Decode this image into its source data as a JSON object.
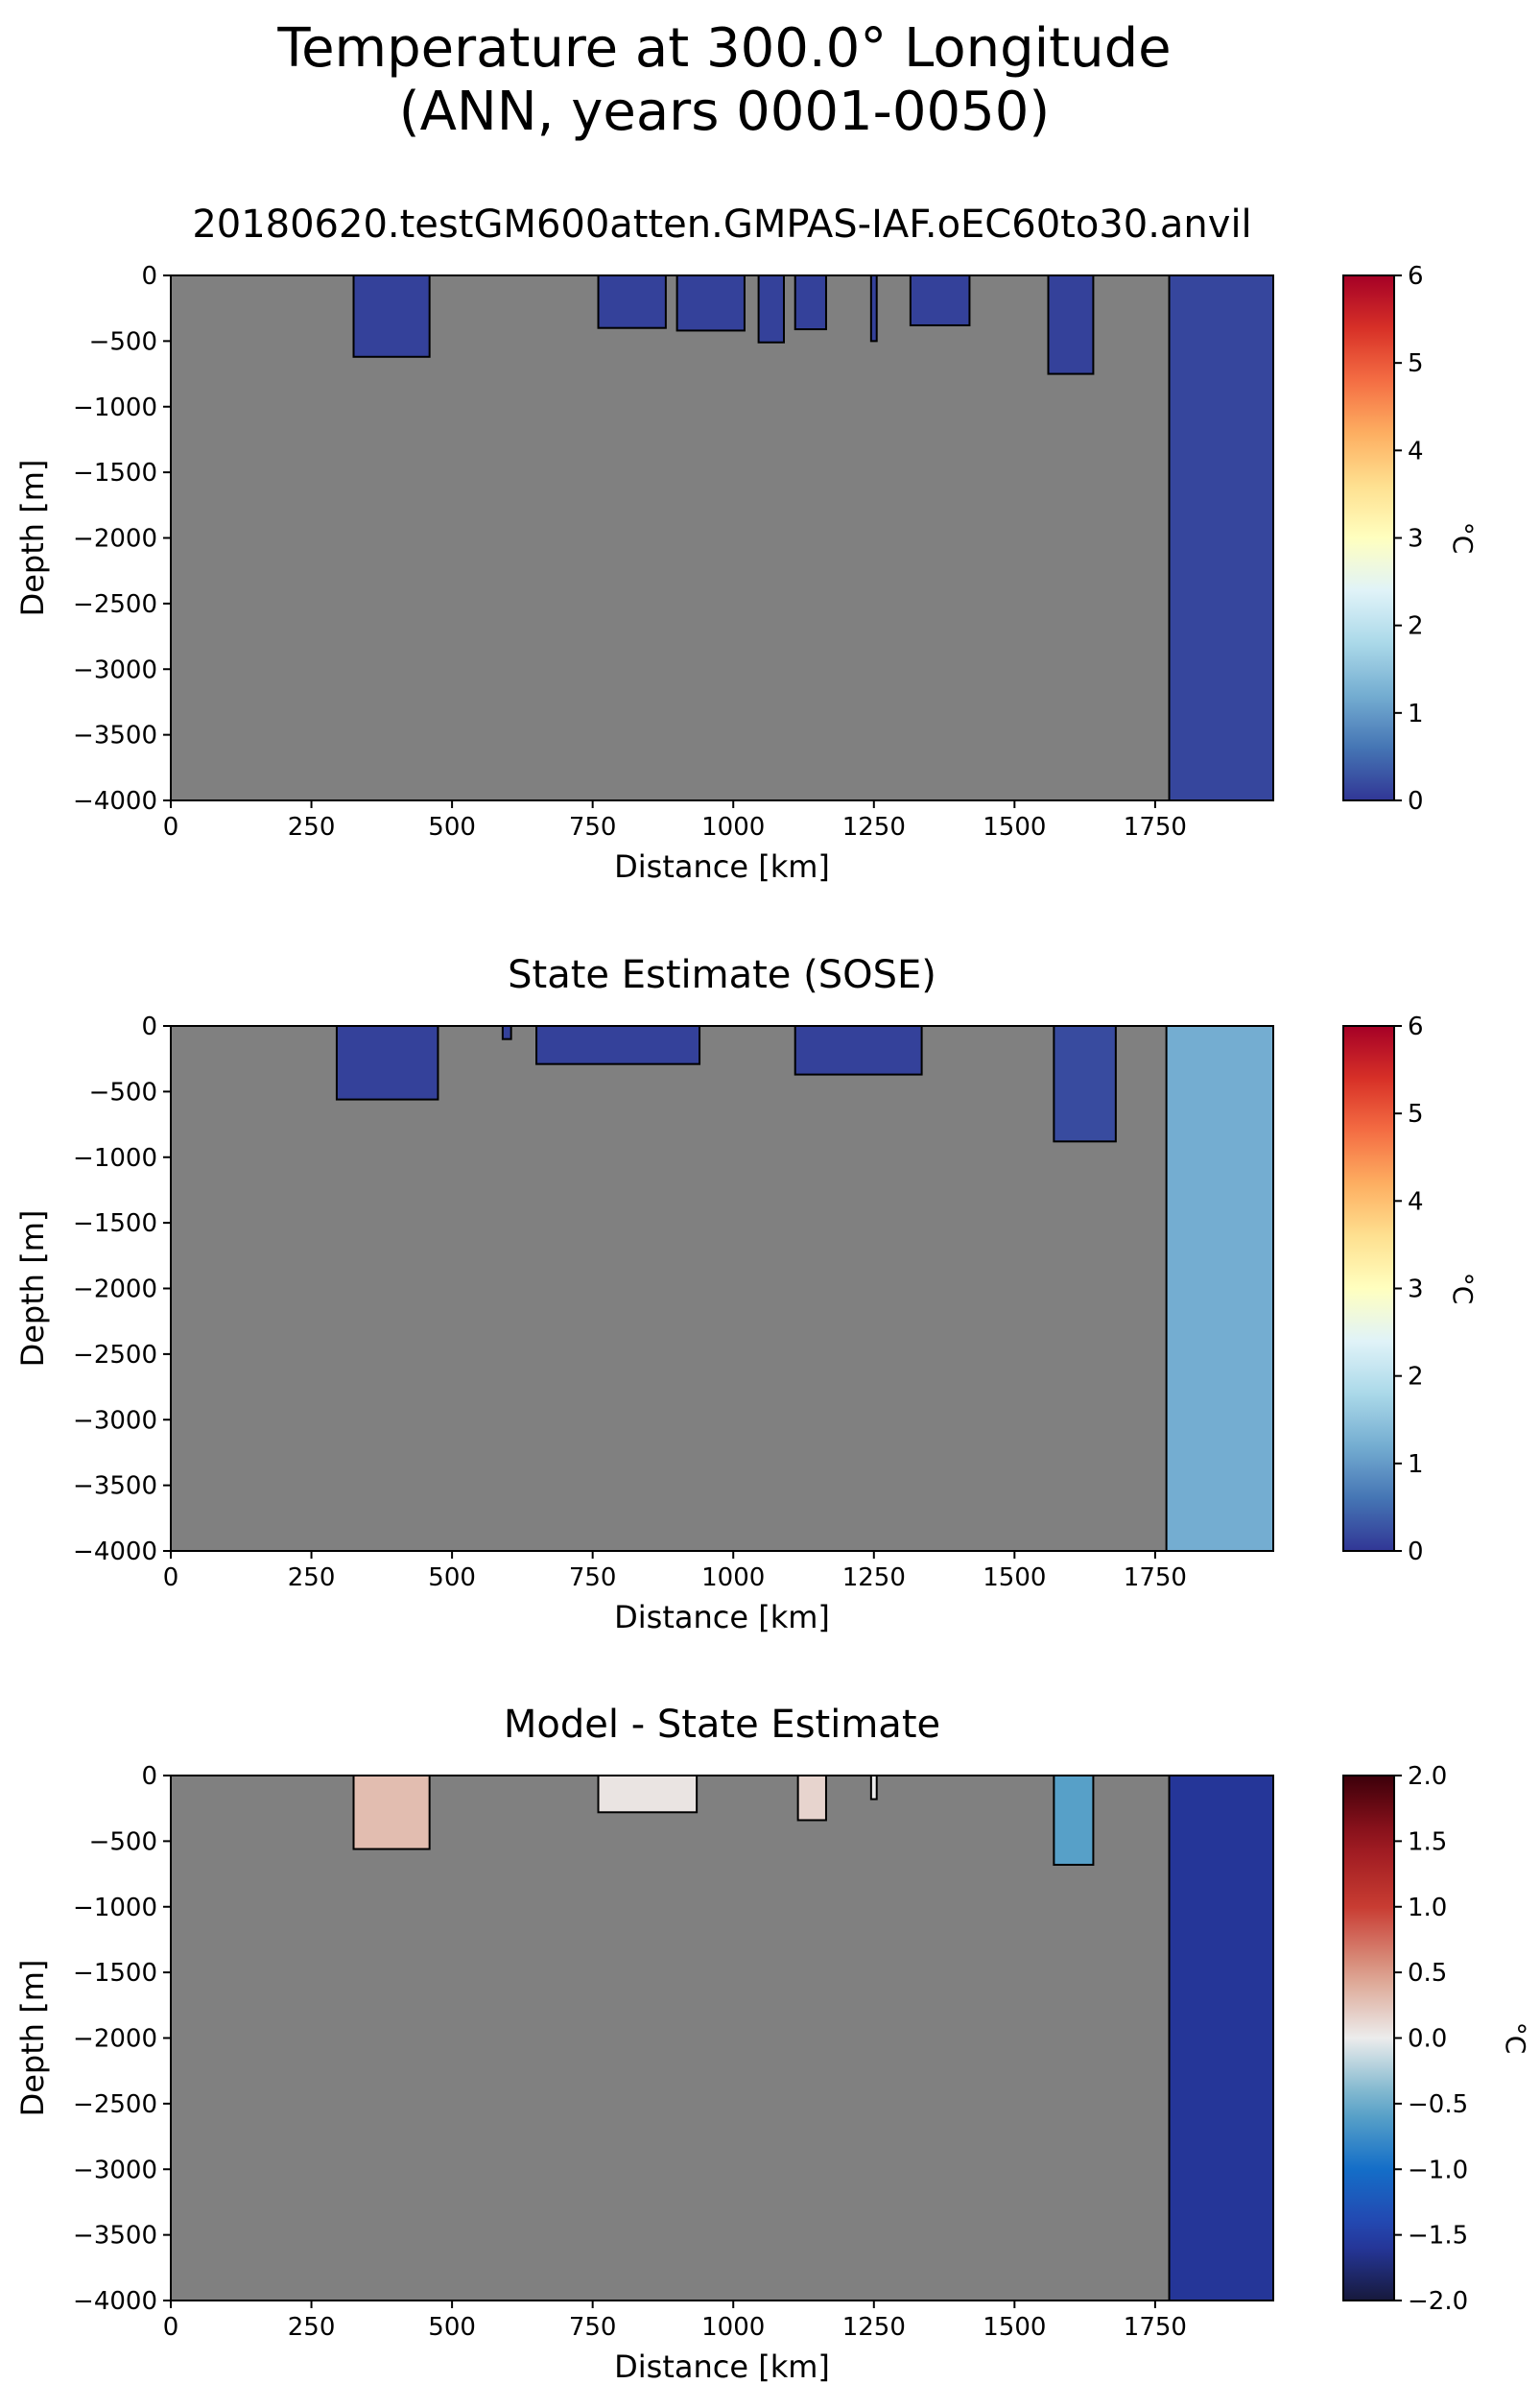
{
  "suptitle": [
    "Temperature at 300.0° Longitude",
    "(ANN, years 0001-0050)"
  ],
  "chart_data": [
    {
      "type": "heatmap",
      "title": "20180620.testGM600atten.GMPAS-IAF.oEC60to30.anvil",
      "xlabel": "Distance [km]",
      "ylabel": "Depth [m]",
      "xlim": [
        0,
        1960
      ],
      "ylim": [
        -4000,
        0
      ],
      "xticks": [
        0,
        250,
        500,
        750,
        1000,
        1250,
        1500,
        1750
      ],
      "yticks": [
        0,
        -500,
        -1000,
        -1500,
        -2000,
        -2500,
        -3000,
        -3500,
        -4000
      ],
      "colorbar": {
        "label": "°C",
        "range": [
          0,
          6
        ],
        "ticks": [
          0,
          1,
          2,
          3,
          4,
          5,
          6
        ],
        "colormap": "RdYlBu_r"
      },
      "land_color": "#808080",
      "ocean_columns": [
        {
          "x": [
            325,
            460
          ],
          "bottom": -620,
          "value": 0.1
        },
        {
          "x": [
            760,
            880
          ],
          "bottom": -400,
          "value": 0.1
        },
        {
          "x": [
            900,
            1020
          ],
          "bottom": -420,
          "value": 0.1
        },
        {
          "x": [
            1045,
            1090
          ],
          "bottom": -510,
          "value": 0.1
        },
        {
          "x": [
            1110,
            1165
          ],
          "bottom": -410,
          "value": 0.1
        },
        {
          "x": [
            1245,
            1255
          ],
          "bottom": -500,
          "value": 0.1
        },
        {
          "x": [
            1315,
            1420
          ],
          "bottom": -380,
          "value": 0.1
        },
        {
          "x": [
            1560,
            1640
          ],
          "bottom": -750,
          "value": 0.1
        },
        {
          "x": [
            1775,
            1960
          ],
          "bottom": -4000,
          "value": 0.15
        }
      ]
    },
    {
      "type": "heatmap",
      "title": "State Estimate (SOSE)",
      "xlabel": "Distance [km]",
      "ylabel": "Depth [m]",
      "xlim": [
        0,
        1960
      ],
      "ylim": [
        -4000,
        0
      ],
      "xticks": [
        0,
        250,
        500,
        750,
        1000,
        1250,
        1500,
        1750
      ],
      "yticks": [
        0,
        -500,
        -1000,
        -1500,
        -2000,
        -2500,
        -3000,
        -3500,
        -4000
      ],
      "colorbar": {
        "label": "°C",
        "range": [
          0,
          6
        ],
        "ticks": [
          0,
          1,
          2,
          3,
          4,
          5,
          6
        ],
        "colormap": "RdYlBu_r"
      },
      "land_color": "#808080",
      "ocean_columns": [
        {
          "x": [
            295,
            475
          ],
          "bottom": -560,
          "value": 0.1
        },
        {
          "x": [
            590,
            605
          ],
          "bottom": -100,
          "value": 0.1
        },
        {
          "x": [
            650,
            940
          ],
          "bottom": -290,
          "value": 0.1
        },
        {
          "x": [
            1110,
            1335
          ],
          "bottom": -370,
          "value": 0.1
        },
        {
          "x": [
            1570,
            1680
          ],
          "bottom": -880,
          "value": 0.2
        },
        {
          "x": [
            1770,
            1960
          ],
          "bottom": -4000,
          "value": 1.2
        }
      ]
    },
    {
      "type": "heatmap",
      "title": "Model - State Estimate",
      "xlabel": "Distance [km]",
      "ylabel": "Depth [m]",
      "xlim": [
        0,
        1960
      ],
      "ylim": [
        -4000,
        0
      ],
      "xticks": [
        0,
        250,
        500,
        750,
        1000,
        1250,
        1500,
        1750
      ],
      "yticks": [
        0,
        -500,
        -1000,
        -1500,
        -2000,
        -2500,
        -3000,
        -3500,
        -4000
      ],
      "colorbar": {
        "label": "°C",
        "range": [
          -2,
          2
        ],
        "ticks": [
          -2.0,
          -1.5,
          -1.0,
          -0.5,
          0.0,
          0.5,
          1.0,
          1.5,
          2.0
        ],
        "colormap": "RdBu_r"
      },
      "land_color": "#808080",
      "ocean_columns": [
        {
          "x": [
            325,
            460
          ],
          "bottom": -560,
          "value": 0.3
        },
        {
          "x": [
            760,
            935
          ],
          "bottom": -280,
          "value": 0.05
        },
        {
          "x": [
            1115,
            1165
          ],
          "bottom": -340,
          "value": 0.15
        },
        {
          "x": [
            1245,
            1255
          ],
          "bottom": -180,
          "value": 0.0
        },
        {
          "x": [
            1570,
            1640
          ],
          "bottom": -680,
          "value": -0.6
        },
        {
          "x": [
            1775,
            1960
          ],
          "bottom": -4000,
          "value": -1.6
        }
      ]
    }
  ]
}
